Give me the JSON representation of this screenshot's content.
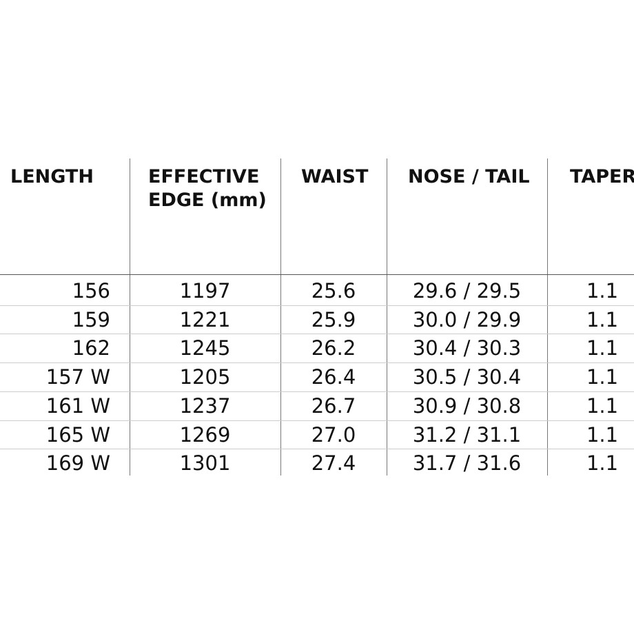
{
  "table": {
    "header": [
      "LENGTH",
      "EFFECTIVE EDGE (mm)",
      "WAIST",
      "NOSE / TAIL",
      "TAPER"
    ],
    "rows": [
      [
        "156",
        "1197",
        "25.6",
        "29.6 / 29.5",
        "1.1"
      ],
      [
        "159",
        "1221",
        "25.9",
        "30.0 / 29.9",
        "1.1"
      ],
      [
        "162",
        "1245",
        "26.2",
        "30.4 / 30.3",
        "1.1"
      ],
      [
        "157 W",
        "1205",
        "26.4",
        "30.5 / 30.4",
        "1.1"
      ],
      [
        "161 W",
        "1237",
        "26.7",
        "30.9 / 30.8",
        "1.1"
      ],
      [
        "165 W",
        "1269",
        "27.0",
        "31.2 / 31.1",
        "1.1"
      ],
      [
        "169 W",
        "1301",
        "27.4",
        "31.7 / 31.6",
        "1.1"
      ]
    ]
  }
}
